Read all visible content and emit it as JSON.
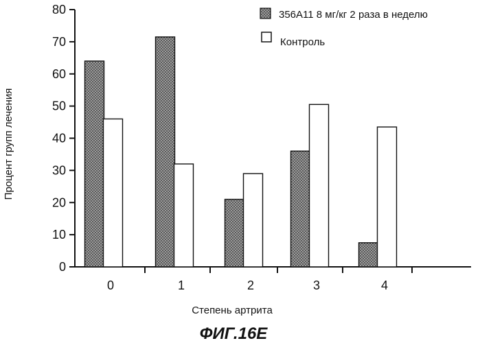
{
  "chart_data": {
    "type": "bar",
    "categories": [
      "0",
      "1",
      "2",
      "3",
      "4"
    ],
    "series": [
      {
        "name": "356A11 8 мг/кг 2 раза в неделю",
        "values": [
          64,
          71.5,
          21,
          36,
          7.5
        ],
        "pattern": "stipple"
      },
      {
        "name": "Контроль",
        "values": [
          46,
          32,
          29,
          50.5,
          43.5
        ],
        "pattern": "open"
      }
    ],
    "xlabel": "Степень артрита",
    "ylabel": "Процент групп лечения",
    "ylim": [
      0,
      80
    ],
    "yticks": [
      0,
      10,
      20,
      30,
      40,
      50,
      60,
      70,
      80
    ],
    "grid": false,
    "legend_position": "top-right"
  },
  "caption": "ФИГ.16E",
  "colors": {
    "ink": "#111111",
    "stipple_bg": "#9c9c9c",
    "stipple_dot": "#2a2a2a",
    "open_fill": "#ffffff"
  }
}
